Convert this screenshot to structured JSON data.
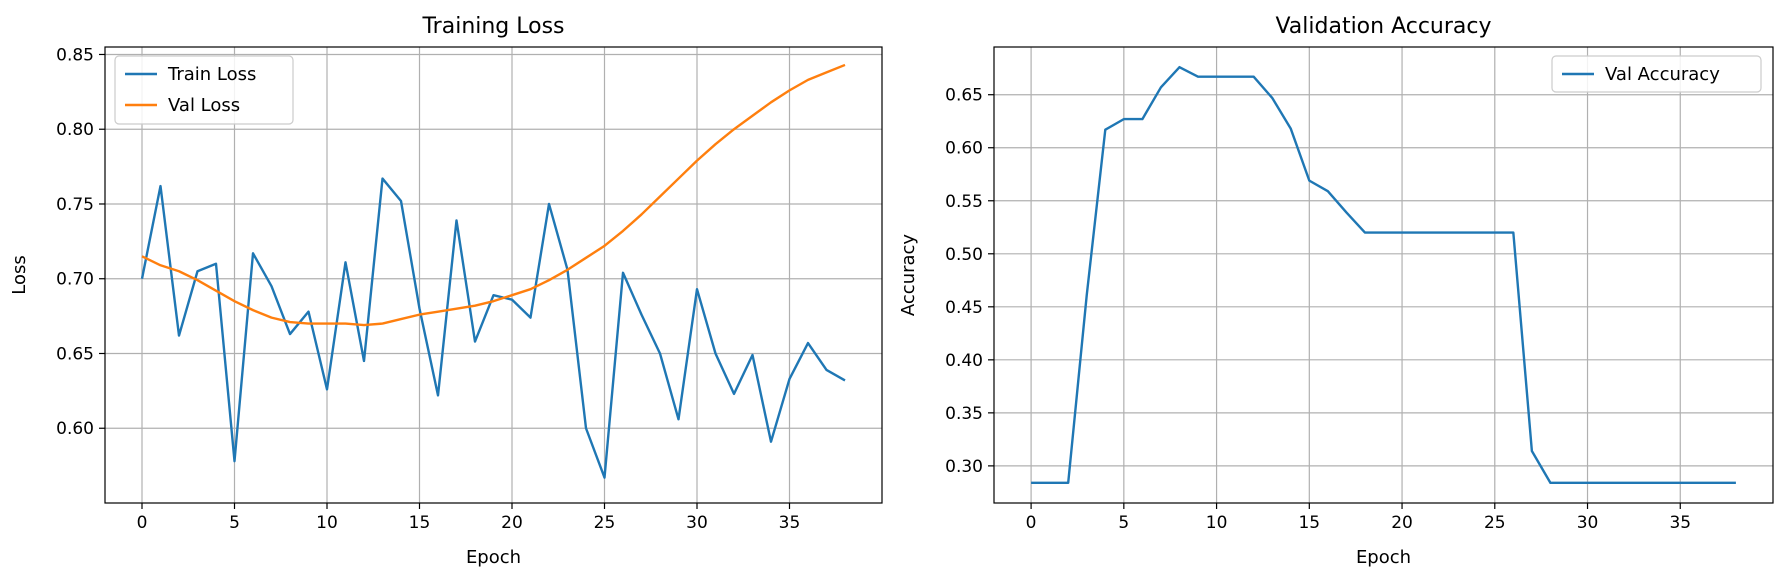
{
  "chart_data": [
    {
      "type": "line",
      "title": "Training Loss",
      "xlabel": "Epoch",
      "ylabel": "Loss",
      "xlim": [
        -2,
        40
      ],
      "ylim": [
        0.55,
        0.855
      ],
      "xticks": [
        0,
        5,
        10,
        15,
        20,
        25,
        30,
        35
      ],
      "yticks": [
        0.6,
        0.65,
        0.7,
        0.75,
        0.8,
        0.85
      ],
      "ytick_decimals": 2,
      "grid": true,
      "legend": "top-left",
      "x": [
        0,
        1,
        2,
        3,
        4,
        5,
        6,
        7,
        8,
        9,
        10,
        11,
        12,
        13,
        14,
        15,
        16,
        17,
        18,
        19,
        20,
        21,
        22,
        23,
        24,
        25,
        26,
        27,
        28,
        29,
        30,
        31,
        32,
        33,
        34,
        35,
        36,
        37,
        38
      ],
      "series": [
        {
          "name": "Train Loss",
          "color": "#1f77b4",
          "values": [
            0.7,
            0.762,
            0.662,
            0.705,
            0.71,
            0.578,
            0.717,
            0.695,
            0.663,
            0.678,
            0.626,
            0.711,
            0.645,
            0.767,
            0.752,
            0.68,
            0.622,
            0.739,
            0.658,
            0.689,
            0.686,
            0.674,
            0.75,
            0.706,
            0.6,
            0.567,
            0.704,
            0.676,
            0.65,
            0.606,
            0.693,
            0.65,
            0.623,
            0.649,
            0.591,
            0.633,
            0.657,
            0.639,
            0.632
          ]
        },
        {
          "name": "Val Loss",
          "color": "#ff7f0e",
          "values": [
            0.715,
            0.709,
            0.705,
            0.699,
            0.692,
            0.685,
            0.679,
            0.674,
            0.671,
            0.67,
            0.67,
            0.67,
            0.669,
            0.67,
            0.673,
            0.676,
            0.678,
            0.68,
            0.682,
            0.685,
            0.689,
            0.693,
            0.699,
            0.706,
            0.714,
            0.722,
            0.732,
            0.743,
            0.755,
            0.767,
            0.779,
            0.79,
            0.8,
            0.809,
            0.818,
            0.826,
            0.833,
            0.838,
            0.843
          ]
        }
      ]
    },
    {
      "type": "line",
      "title": "Validation Accuracy",
      "xlabel": "Epoch",
      "ylabel": "Accuracy",
      "xlim": [
        -2,
        40
      ],
      "ylim": [
        0.265,
        0.695
      ],
      "xticks": [
        0,
        5,
        10,
        15,
        20,
        25,
        30,
        35
      ],
      "yticks": [
        0.3,
        0.35,
        0.4,
        0.45,
        0.5,
        0.55,
        0.6,
        0.65
      ],
      "ytick_decimals": 2,
      "grid": true,
      "legend": "top-right",
      "x": [
        0,
        1,
        2,
        3,
        4,
        5,
        6,
        7,
        8,
        9,
        10,
        11,
        12,
        13,
        14,
        15,
        16,
        17,
        18,
        19,
        20,
        21,
        22,
        23,
        24,
        25,
        26,
        27,
        28,
        29,
        30,
        31,
        32,
        33,
        34,
        35,
        36,
        37,
        38
      ],
      "series": [
        {
          "name": "Val Accuracy",
          "color": "#1f77b4",
          "values": [
            0.284,
            0.284,
            0.284,
            0.461,
            0.617,
            0.627,
            0.627,
            0.657,
            0.676,
            0.667,
            0.667,
            0.667,
            0.667,
            0.647,
            0.618,
            0.569,
            0.559,
            0.539,
            0.52,
            0.52,
            0.52,
            0.52,
            0.52,
            0.52,
            0.52,
            0.52,
            0.52,
            0.314,
            0.284,
            0.284,
            0.284,
            0.284,
            0.284,
            0.284,
            0.284,
            0.284,
            0.284,
            0.284,
            0.284
          ]
        }
      ]
    }
  ]
}
